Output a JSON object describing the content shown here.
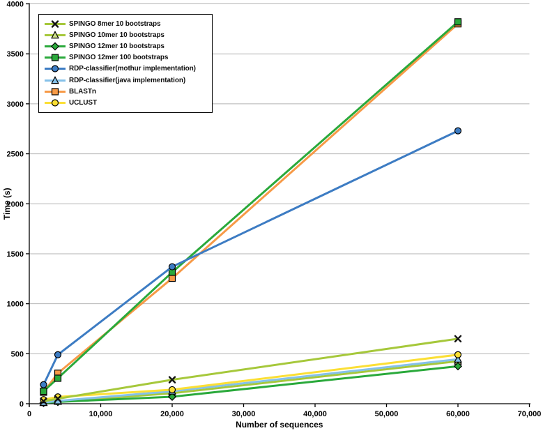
{
  "figure": {
    "background": "#ffffff",
    "grid_color": "#b3b3b3",
    "axis_color": "#000000"
  },
  "chart_data": {
    "type": "line",
    "title": "",
    "xlabel": "Number of sequences",
    "ylabel": "Time (s)",
    "xlim": [
      0,
      70000
    ],
    "ylim": [
      0,
      4000
    ],
    "grid": "horizontal",
    "legend_position": "top-left",
    "x_ticks": [
      0,
      10000,
      20000,
      30000,
      40000,
      50000,
      60000,
      70000
    ],
    "x_tick_labels": [
      "0",
      "10,000",
      "20,000",
      "30,000",
      "40,000",
      "50,000",
      "60,000",
      "70,000"
    ],
    "y_ticks": [
      0,
      500,
      1000,
      1500,
      2000,
      2500,
      3000,
      3500,
      4000
    ],
    "y_tick_labels": [
      "0",
      "500",
      "1000",
      "1500",
      "2000",
      "2500",
      "3000",
      "3500",
      "4000"
    ],
    "x": [
      2000,
      4000,
      20000,
      60000
    ],
    "series": [
      {
        "name": "SPINGO 8mer 10 bootstraps",
        "color": "#a6c83b",
        "marker": "x",
        "marker_fill": "#111111",
        "values": [
          25,
          50,
          240,
          650
        ]
      },
      {
        "name": "SPINGO 10mer 10 bootstraps",
        "color": "#a6c83b",
        "marker": "triangle",
        "marker_fill": "#cfe08a",
        "values": [
          10,
          22,
          105,
          425
        ]
      },
      {
        "name": "SPINGO 12mer 10 bootstraps",
        "color": "#2aa93b",
        "marker": "diamond",
        "marker_fill": "#2aa93b",
        "values": [
          8,
          18,
          70,
          375
        ]
      },
      {
        "name": "SPINGO 12mer 100 bootstraps",
        "color": "#2aa93b",
        "marker": "square",
        "marker_fill": "#2aa93b",
        "values": [
          125,
          255,
          1315,
          3820
        ]
      },
      {
        "name": "RDP-classifier(mothur implementation)",
        "color": "#3d7cc3",
        "marker": "circle",
        "marker_fill": "#3d7cc3",
        "values": [
          190,
          490,
          1370,
          2730
        ]
      },
      {
        "name": "RDP-classifier(java implementation)",
        "color": "#85c1e9",
        "marker": "triangle",
        "marker_fill": "#85c1e9",
        "values": [
          12,
          28,
          125,
          445
        ]
      },
      {
        "name": "BLASTn",
        "color": "#f79a47",
        "marker": "square",
        "marker_fill": "#f79a47",
        "values": [
          115,
          305,
          1255,
          3800
        ]
      },
      {
        "name": "UCLUST",
        "color": "#fbdf35",
        "marker": "circle",
        "marker_fill": "#fbdf35",
        "values": [
          40,
          68,
          140,
          490
        ]
      }
    ],
    "draw_order": [
      6,
      3,
      4,
      1,
      2,
      5,
      7,
      0
    ]
  }
}
